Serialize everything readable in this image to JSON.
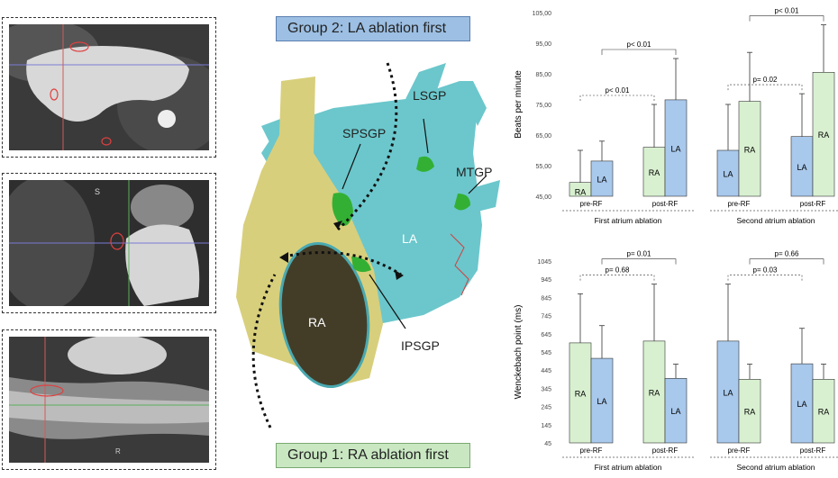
{
  "left_panels": {
    "ct_top_label": "",
    "ct_mid_label": "S",
    "ct_bottom_label": "R"
  },
  "center": {
    "group2_label": "Group 2: LA ablation first",
    "group1_label": "Group 1: RA ablation first",
    "labels": {
      "lsgp": "LSGP",
      "spsgp": "SPSGP",
      "mtgp": "MTGP",
      "la": "LA",
      "ra": "RA",
      "ipsgp": "IPSGP"
    }
  },
  "colors": {
    "ra_bar": "#d8f0d0",
    "la_bar": "#a8c8ec",
    "ra_tissue": "#d8cf7c",
    "la_tissue": "#6bc7cc",
    "gp_green": "#33b033"
  },
  "chart_data": [
    {
      "type": "bar",
      "ylabel": "Beats per minute",
      "ylim": [
        45,
        105
      ],
      "yticks": [
        "45,00",
        "55,00",
        "65,00",
        "75,00",
        "85,00",
        "95,00",
        "105,00"
      ],
      "groups": [
        {
          "title": "First atrium ablation",
          "categories": [
            "pre-RF",
            "post-RF"
          ],
          "bars": [
            {
              "category": "pre-RF",
              "label": "RA",
              "value": 49.5,
              "err": 60
            },
            {
              "category": "pre-RF",
              "label": "LA",
              "value": 56.5,
              "err": 63
            },
            {
              "category": "post-RF",
              "label": "RA",
              "value": 61,
              "err": 75
            },
            {
              "category": "post-RF",
              "label": "LA",
              "value": 76.5,
              "err": 90
            }
          ],
          "annotations": [
            {
              "text": "p< 0.01",
              "from": 0,
              "to": 2
            },
            {
              "text": "p< 0.01",
              "from": 1,
              "to": 3
            }
          ]
        },
        {
          "title": "Second atrium ablation",
          "categories": [
            "pre-RF",
            "post-RF"
          ],
          "bars": [
            {
              "category": "pre-RF",
              "label": "LA",
              "value": 60,
              "err": 75
            },
            {
              "category": "pre-RF",
              "label": "RA",
              "value": 76,
              "err": 92
            },
            {
              "category": "post-RF",
              "label": "LA",
              "value": 64.5,
              "err": 78.5
            },
            {
              "category": "post-RF",
              "label": "RA",
              "value": 85.5,
              "err": 101
            }
          ],
          "annotations": [
            {
              "text": "p= 0.02",
              "from": 0,
              "to": 2
            },
            {
              "text": "p< 0.01",
              "from": 1,
              "to": 3
            }
          ]
        }
      ]
    },
    {
      "type": "bar",
      "ylabel": "Wenckebach point (ms)",
      "ylim": [
        45,
        1045
      ],
      "yticks": [
        "45",
        "145",
        "245",
        "345",
        "445",
        "545",
        "645",
        "745",
        "845",
        "945",
        "1045"
      ],
      "groups": [
        {
          "title": "First atrium ablation",
          "categories": [
            "pre-RF",
            "post-RF"
          ],
          "bars": [
            {
              "category": "pre-RF",
              "label": "RA",
              "value": 595,
              "err": 865
            },
            {
              "category": "pre-RF",
              "label": "LA",
              "value": 510,
              "err": 690
            },
            {
              "category": "post-RF",
              "label": "RA",
              "value": 605,
              "err": 918
            },
            {
              "category": "post-RF",
              "label": "LA",
              "value": 400,
              "err": 478
            }
          ],
          "annotations": [
            {
              "text": "p= 0.68",
              "from": 0,
              "to": 2
            },
            {
              "text": "p= 0.01",
              "from": 1,
              "to": 3
            }
          ]
        },
        {
          "title": "Second atrium ablation",
          "categories": [
            "pre-RF",
            "post-RF"
          ],
          "bars": [
            {
              "category": "pre-RF",
              "label": "LA",
              "value": 605,
              "err": 918
            },
            {
              "category": "pre-RF",
              "label": "RA",
              "value": 395,
              "err": 478
            },
            {
              "category": "post-RF",
              "label": "LA",
              "value": 480,
              "err": 675
            },
            {
              "category": "post-RF",
              "label": "RA",
              "value": 395,
              "err": 478
            }
          ],
          "annotations": [
            {
              "text": "p= 0.03",
              "from": 0,
              "to": 2
            },
            {
              "text": "p= 0.66",
              "from": 1,
              "to": 3
            }
          ]
        }
      ]
    }
  ]
}
